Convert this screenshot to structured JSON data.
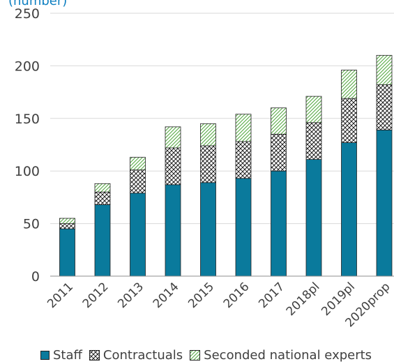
{
  "colors": {
    "staff": "#0a7a9c",
    "contractuals_line": "#1a1a1a",
    "seconded_line": "#4fa63c",
    "axis": "#8c8c8c",
    "grid": "#d9d9d9",
    "text": "#404040"
  },
  "chart_data": {
    "type": "bar",
    "stacked": true,
    "unit_label": "(number)",
    "categories": [
      "2011",
      "2012",
      "2013",
      "2014",
      "2015",
      "2016",
      "2017",
      "2018pl",
      "2019pl",
      "2020prop"
    ],
    "series": [
      {
        "name": "Staff",
        "values": [
          45,
          68,
          79,
          87,
          89,
          93,
          100,
          111,
          127,
          139
        ]
      },
      {
        "name": "Contractuals",
        "values": [
          5,
          12,
          22,
          35,
          35,
          35,
          35,
          35,
          42,
          43
        ]
      },
      {
        "name": "Seconded national experts",
        "values": [
          5,
          8,
          12,
          20,
          21,
          26,
          25,
          25,
          27,
          28
        ]
      }
    ],
    "y_ticks": [
      "0",
      "50",
      "100",
      "150",
      "200",
      "250"
    ],
    "ylim": [
      0,
      250
    ],
    "grid": true,
    "legend_position": "bottom"
  }
}
